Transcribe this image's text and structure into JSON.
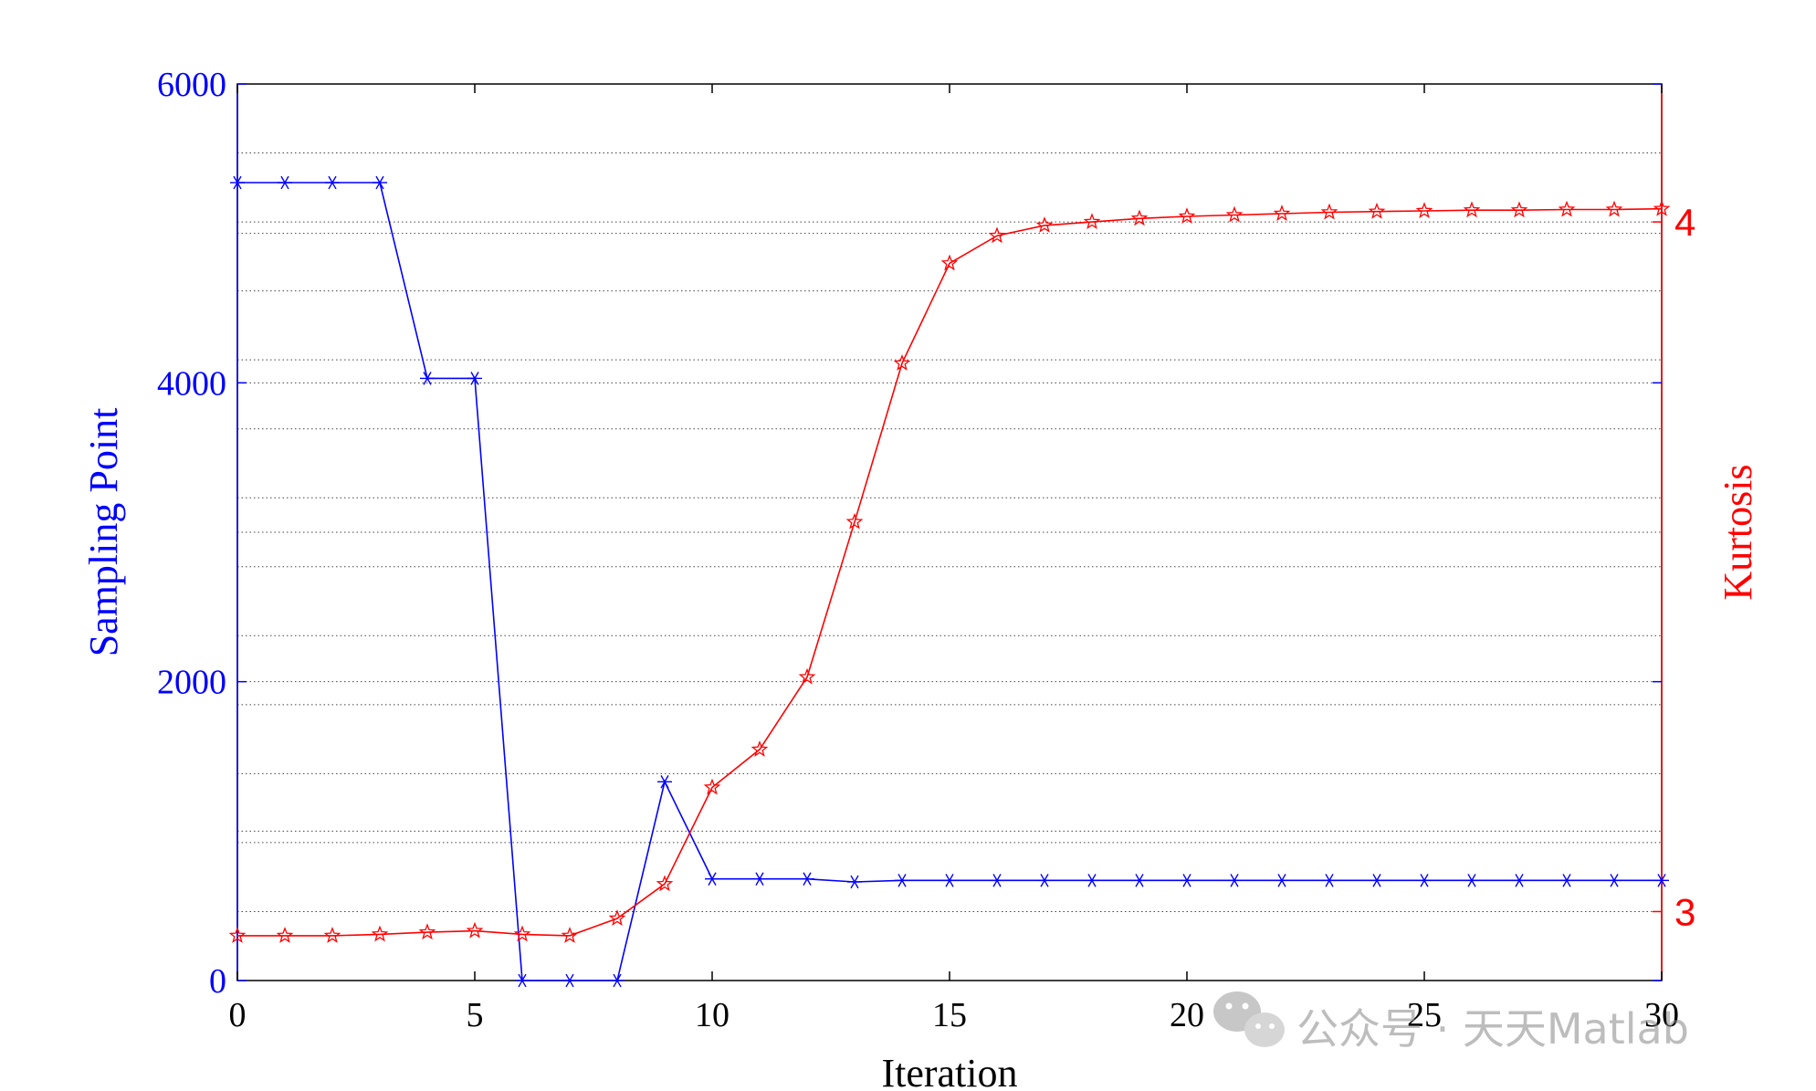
{
  "chart_data": {
    "type": "line",
    "xlabel": "Iteration",
    "ylabel_left": "Sampling Point",
    "ylabel_right": "Kurtosis",
    "xlim": [
      0,
      30
    ],
    "ylim_left": [
      0,
      6000
    ],
    "ylim_right": [
      2.9,
      4.2
    ],
    "xticks": [
      0,
      5,
      10,
      15,
      20,
      25,
      30
    ],
    "yticks_left": [
      0,
      2000,
      4000,
      6000
    ],
    "yticks_right": [
      3,
      4
    ],
    "grid": "horizontal dotted",
    "x": [
      0,
      1,
      2,
      3,
      4,
      5,
      6,
      7,
      8,
      9,
      10,
      11,
      12,
      13,
      14,
      15,
      16,
      17,
      18,
      19,
      20,
      21,
      22,
      23,
      24,
      25,
      26,
      27,
      28,
      29,
      30
    ],
    "series": [
      {
        "axis": "left",
        "color": "#0000ff",
        "marker": "asterisk",
        "values": [
          5340,
          5340,
          5340,
          5340,
          4030,
          4030,
          0,
          0,
          0,
          1330,
          680,
          680,
          680,
          660,
          670,
          670,
          670,
          670,
          670,
          670,
          670,
          670,
          670,
          670,
          670,
          670,
          670,
          670,
          670,
          670,
          670
        ]
      },
      {
        "axis": "right",
        "color": "#ff0000",
        "marker": "pentagram",
        "values": [
          2.965,
          2.965,
          2.965,
          2.967,
          2.97,
          2.972,
          2.967,
          2.965,
          2.99,
          3.04,
          3.18,
          3.235,
          3.34,
          3.565,
          3.795,
          3.94,
          3.98,
          3.995,
          4.0,
          4.005,
          4.008,
          4.01,
          4.012,
          4.014,
          4.015,
          4.016,
          4.017,
          4.017,
          4.018,
          4.018,
          4.019
        ]
      }
    ]
  },
  "watermark": {
    "text": "公众号 · 天天Matlab"
  }
}
